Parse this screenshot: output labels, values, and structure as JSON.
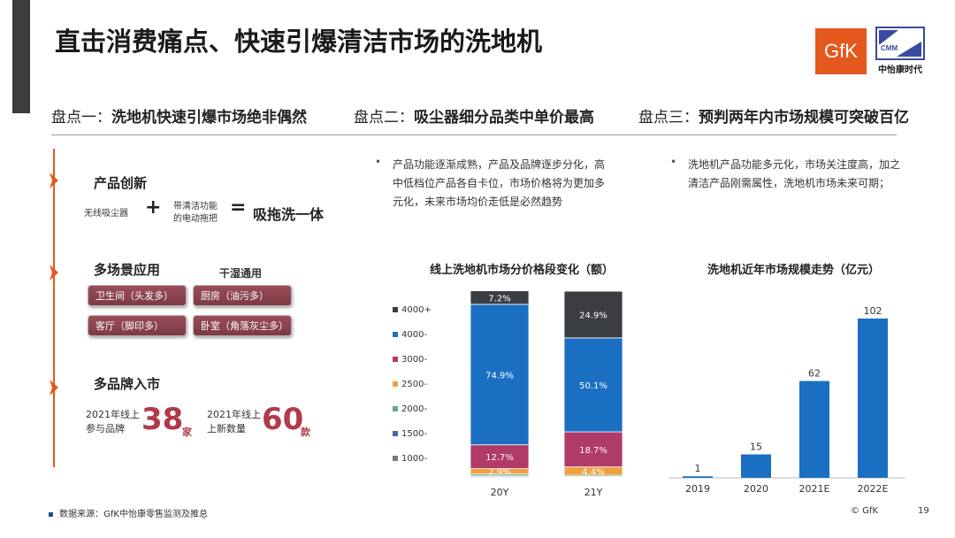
{
  "title": "直击消费痛点、快速引爆清洁市场的洗地机",
  "logos": {
    "gfk": "GfK",
    "cmm_box": "CMM",
    "cmm_name": "中怡康时代"
  },
  "points": [
    {
      "prefix": "盘点一：",
      "text": "洗地机快速引爆市场绝非偶然"
    },
    {
      "prefix": "盘点二：",
      "text": "吸尘器细分品类中单价最高"
    },
    {
      "prefix": "盘点三：",
      "text": "预判两年内市场规模可突破百亿"
    }
  ],
  "left": {
    "sec1": {
      "title": "产品创新",
      "item_a": "无线吸尘器",
      "plus": "+",
      "item_b_line1": "带清洁功能",
      "item_b_line2": "的电动拖把",
      "equals": "=",
      "result": "吸拖洗一体"
    },
    "sec2": {
      "title": "多场景应用",
      "subtitle": "干湿通用",
      "chips": [
        "卫生间（头发多）",
        "厨房（油污多）",
        "客厅（脚印多）",
        "卧室（角落灰尘多）"
      ]
    },
    "sec3": {
      "title": "多品牌入市",
      "stat1_line1": "2021年线上",
      "stat1_line2": "参与品牌",
      "stat1_value": "38",
      "stat1_unit": "家",
      "stat2_line1": "2021年线上",
      "stat2_line2": "上新数量",
      "stat2_value": "60",
      "stat2_unit": "款"
    }
  },
  "bullets": {
    "mid": "产品功能逐渐成熟，产品及品牌逐步分化，高中低档位产品各自卡位，市场价格将为更加多元化，未来市场均价走低是必然趋势",
    "right": "洗地机产品功能多元化，市场关注度高，加之清洁产品刚需属性，洗地机市场未来可期；"
  },
  "chart_data": [
    {
      "type": "bar",
      "stacked": true,
      "title": "线上洗地机市场分价格段变化（额）",
      "categories": [
        "20Y",
        "21Y"
      ],
      "series": [
        {
          "name": "1000-",
          "color": "#7a7a7a",
          "values": [
            0.5,
            0.3
          ]
        },
        {
          "name": "1500-",
          "color": "#4a6a9a",
          "values": [
            0.5,
            0.4
          ]
        },
        {
          "name": "2000-",
          "color": "#5fa890",
          "values": [
            1.0,
            0.7
          ]
        },
        {
          "name": "2500-",
          "color": "#f0a040",
          "values": [
            2.9,
            4.4
          ]
        },
        {
          "name": "3000-",
          "color": "#b03a68",
          "values": [
            12.7,
            18.7
          ]
        },
        {
          "name": "4000-",
          "color": "#1a6fc2",
          "values": [
            74.9,
            50.1
          ]
        },
        {
          "name": "4000+",
          "color": "#3a3d42",
          "values": [
            7.2,
            24.9
          ]
        }
      ],
      "labels": [
        [
          "",
          "",
          "",
          "2.9%",
          "12.7%",
          "74.9%",
          "7.2%"
        ],
        [
          "",
          "",
          "",
          "4.4%",
          "18.7%",
          "50.1%",
          "24.9%"
        ]
      ],
      "legend_position": "left",
      "ylim": [
        0,
        100
      ]
    },
    {
      "type": "bar",
      "title": "洗地机近年市场规模走势（亿元）",
      "categories": [
        "2019",
        "2020",
        "2021E",
        "2022E"
      ],
      "values": [
        1,
        15,
        62,
        102
      ],
      "color": "#1a6fc2",
      "ylim": [
        0,
        102
      ]
    }
  ],
  "footer": {
    "source": "数据来源：GfK中怡康零售监测及推总",
    "copyright": "© GfK",
    "page": "19"
  },
  "colors": {
    "accent": "#e5581d",
    "highlight": "#b03a4a",
    "chip": "#8a444d"
  }
}
